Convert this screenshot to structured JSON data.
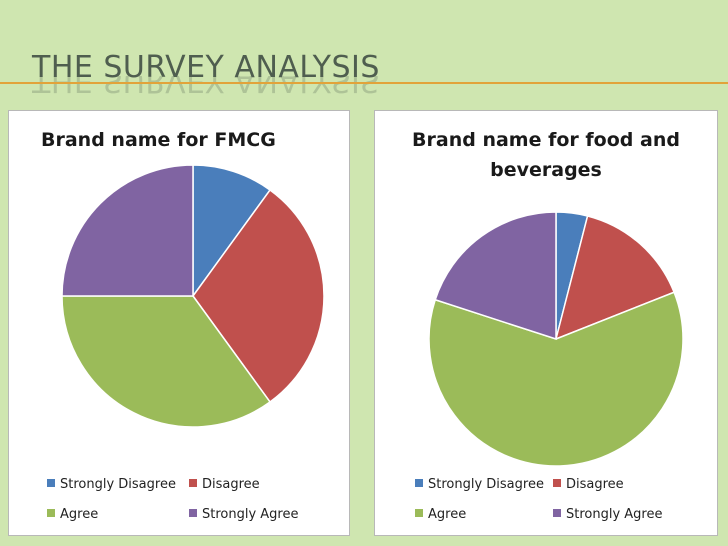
{
  "slide": {
    "title": "THE SURVEY ANALYSIS"
  },
  "colors": {
    "strongly_disagree": "#4a7ebb",
    "disagree": "#c0504d",
    "agree": "#9bbb59",
    "strongly_agree": "#8064a2",
    "background": "#cfe6b0",
    "rule": "#e2a33a"
  },
  "legend": [
    "Strongly Disagree",
    "Disagree",
    "Agree",
    "Strongly Agree"
  ],
  "chart_data": [
    {
      "type": "pie",
      "title": "Brand name for FMCG",
      "categories": [
        "Strongly Disagree",
        "Disagree",
        "Agree",
        "Strongly Agree"
      ],
      "values": [
        10,
        30,
        35,
        25
      ],
      "legend_position": "bottom"
    },
    {
      "type": "pie",
      "title": "Brand name for food and beverages",
      "categories": [
        "Strongly Disagree",
        "Disagree",
        "Agree",
        "Strongly Agree"
      ],
      "values": [
        4,
        15,
        61,
        20
      ],
      "legend_position": "bottom"
    }
  ]
}
